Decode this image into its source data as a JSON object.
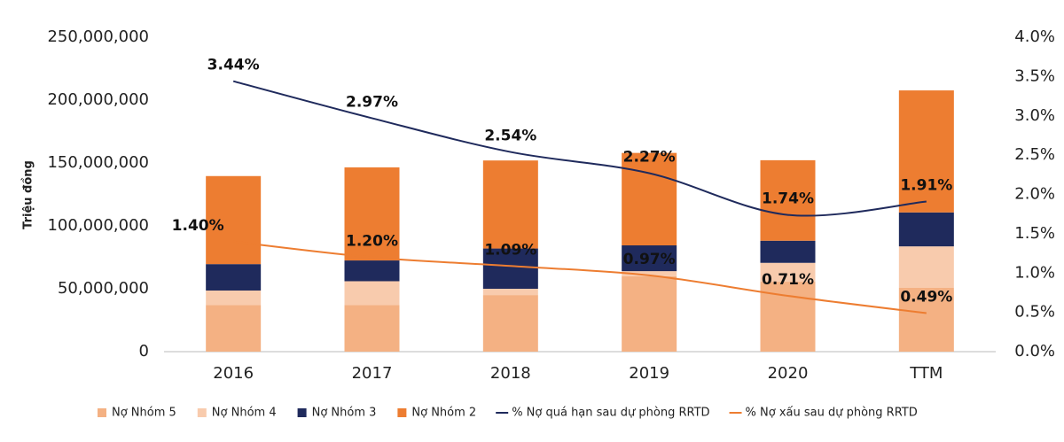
{
  "chart_data": {
    "type": "bar",
    "y_label": "Triệu đồng",
    "categories": [
      "2016",
      "2017",
      "2018",
      "2019",
      "2020",
      "TTM"
    ],
    "stacked": true,
    "series": [
      {
        "name": "Nợ Nhóm 5",
        "color": "#f4b183",
        "values": [
          37000000,
          37000000,
          45000000,
          60000000,
          55600000,
          50700000
        ]
      },
      {
        "name": "Nợ Nhóm 4",
        "color": "#f8cbad",
        "values": [
          11600000,
          19000000,
          5000000,
          4000000,
          15000000,
          33000000
        ]
      },
      {
        "name": "Nợ Nhóm 3",
        "color": "#1f2a5c",
        "values": [
          21000000,
          16500000,
          32000000,
          20500000,
          17600000,
          27000000
        ]
      },
      {
        "name": "Nợ Nhóm 2",
        "color": "#ed7d31",
        "values": [
          70000000,
          74000000,
          70000000,
          73500000,
          64000000,
          97000000
        ]
      },
      {
        "name": "% Nợ quá hạn sau dự phòng RRTD",
        "type": "line",
        "axis": "y2",
        "color": "#1f2a5c",
        "values": [
          3.44,
          2.97,
          2.54,
          2.27,
          1.74,
          1.91
        ],
        "value_labels": [
          "3.44%",
          "2.97%",
          "2.54%",
          "2.27%",
          "1.74%",
          "1.91%"
        ]
      },
      {
        "name": "% Nợ xấu sau dự phòng RRTD",
        "type": "line",
        "axis": "y2",
        "color": "#ed7d31",
        "values": [
          1.4,
          1.2,
          1.09,
          0.97,
          0.71,
          0.49
        ],
        "value_labels": [
          "1.40%",
          "1.20%",
          "1.09%",
          "0.97%",
          "0.71%",
          "0.49%"
        ]
      }
    ],
    "ylim": [
      0,
      250000000
    ],
    "yticks": [
      0,
      {
        "value": 50000000,
        "label": "50,000,000"
      },
      {
        "value": 100000000,
        "label": "100,000,000"
      },
      {
        "value": 150000000,
        "label": "150,000,000"
      },
      {
        "value": 200000000,
        "label": "200,000,000"
      },
      {
        "value": 250000000,
        "label": "250,000,000"
      }
    ],
    "y2lim": [
      0,
      4
    ],
    "y2ticks": [
      {
        "value": 0,
        "label": "0.0%"
      },
      {
        "value": 0.5,
        "label": "0.5%"
      },
      {
        "value": 1,
        "label": "1.0%"
      },
      {
        "value": 1.5,
        "label": "1.5%"
      },
      {
        "value": 2,
        "label": "2.0%"
      },
      {
        "value": 2.5,
        "label": "2.5%"
      },
      {
        "value": 3,
        "label": "3.0%"
      },
      {
        "value": 3.5,
        "label": "3.5%"
      },
      {
        "value": 4,
        "label": "4.0%"
      }
    ],
    "legend": "bottom",
    "grid": false
  }
}
